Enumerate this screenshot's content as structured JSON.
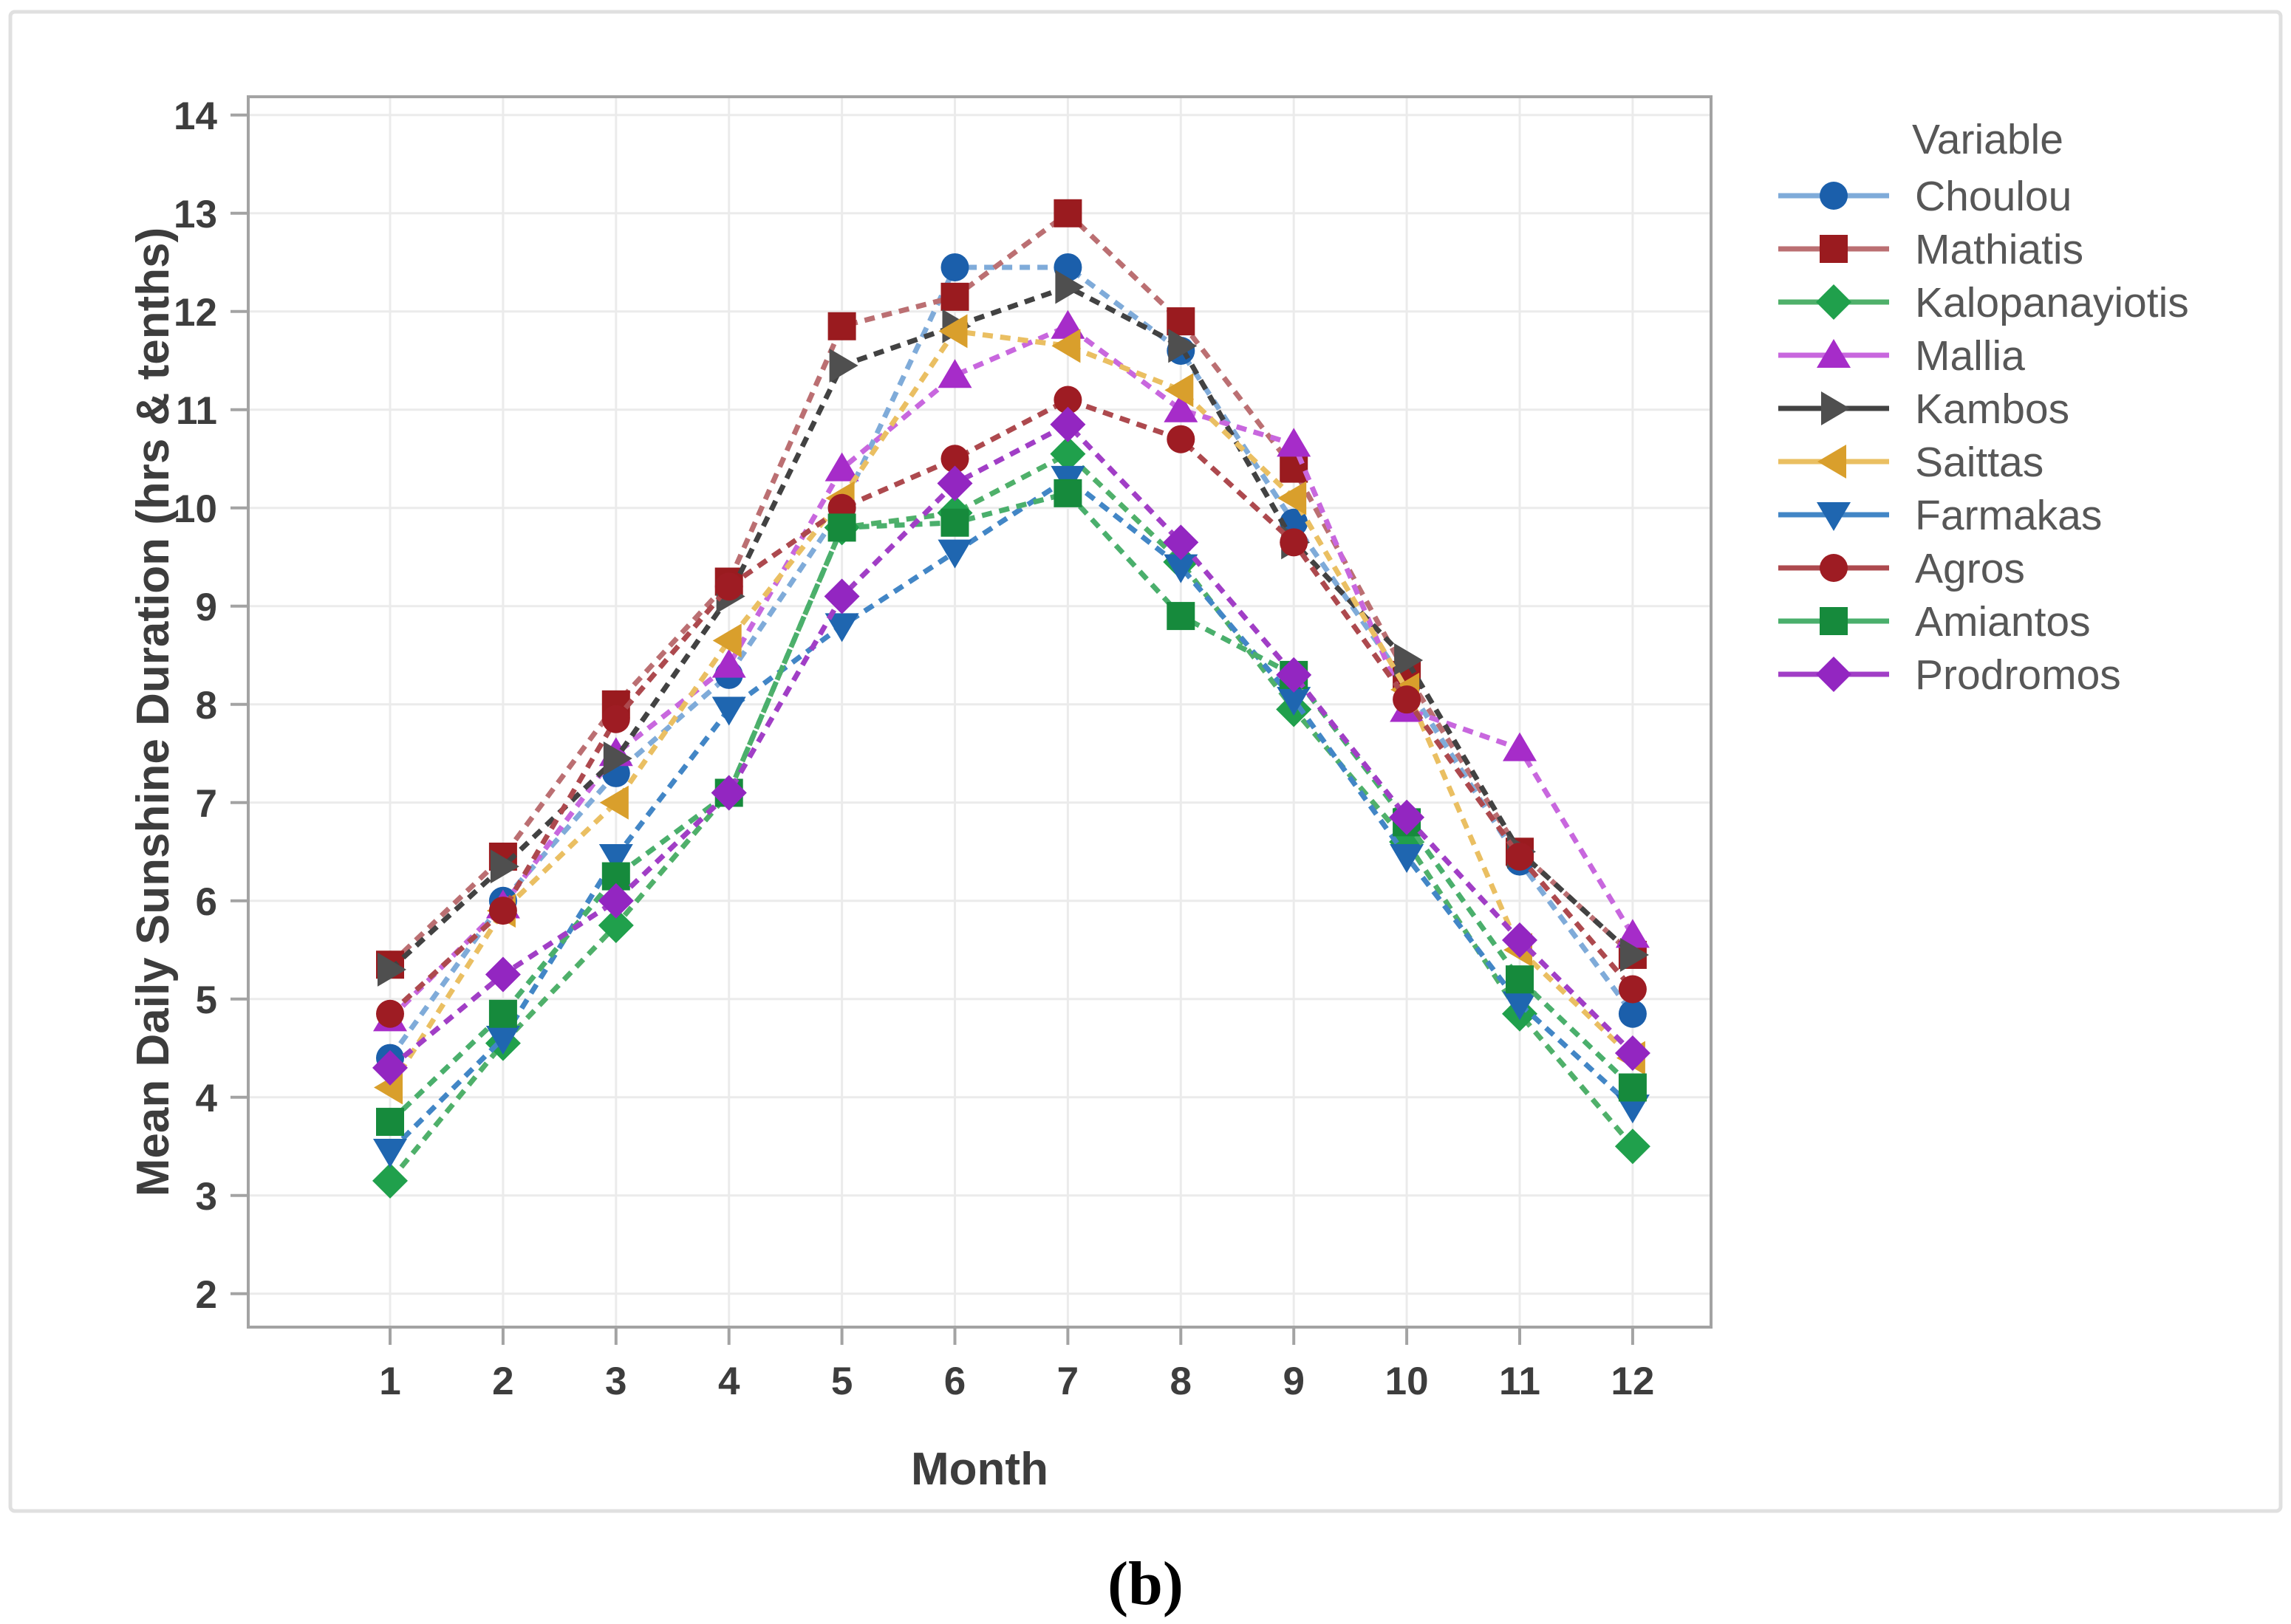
{
  "figure": {
    "caption": "(b)",
    "border_color": "#e0e0e0"
  },
  "chart_data": {
    "type": "line",
    "title": "",
    "xlabel": "Month",
    "ylabel": "Mean Daily Sunshine Duration (hrs & tenths)",
    "x": [
      1,
      2,
      3,
      4,
      5,
      6,
      7,
      8,
      9,
      10,
      11,
      12
    ],
    "xlim": [
      1,
      12
    ],
    "ylim": [
      2,
      14
    ],
    "yticks": [
      2,
      3,
      4,
      5,
      6,
      7,
      8,
      9,
      10,
      11,
      12,
      13,
      14
    ],
    "grid": "both",
    "legend_title": "Variable",
    "legend_position": "right",
    "series": [
      {
        "name": "Choulou",
        "marker": "circle",
        "marker_color": "#1b5fab",
        "line_color": "#7fabd9",
        "values": [
          4.4,
          6.0,
          7.3,
          8.3,
          10.0,
          12.45,
          12.45,
          11.6,
          9.85,
          8.2,
          6.4,
          4.85
        ]
      },
      {
        "name": "Mathiatis",
        "marker": "square",
        "marker_color": "#9a1b1f",
        "line_color": "#bb6f72",
        "values": [
          5.35,
          6.45,
          8.0,
          9.25,
          11.85,
          12.15,
          13.0,
          11.9,
          10.4,
          8.3,
          6.5,
          5.45
        ]
      },
      {
        "name": "Kalopanayiotis",
        "marker": "diamond",
        "marker_color": "#20a04c",
        "line_color": "#4fb06a",
        "values": [
          3.15,
          4.55,
          5.75,
          7.1,
          9.8,
          9.95,
          10.55,
          9.45,
          7.95,
          6.6,
          4.85,
          3.5
        ]
      },
      {
        "name": "Mallia",
        "marker": "triangle-up",
        "marker_color": "#a62cc9",
        "line_color": "#c867de",
        "values": [
          4.8,
          5.95,
          7.5,
          8.4,
          10.4,
          11.35,
          11.85,
          11.0,
          10.65,
          7.95,
          7.55,
          5.65
        ]
      },
      {
        "name": "Kambos",
        "marker": "triangle-right",
        "marker_color": "#4f4f4f",
        "line_color": "#424242",
        "values": [
          5.3,
          6.35,
          7.45,
          9.1,
          11.45,
          11.85,
          12.25,
          11.65,
          9.65,
          8.45,
          6.5,
          5.45
        ]
      },
      {
        "name": "Saittas",
        "marker": "triangle-left",
        "marker_color": "#d99f2c",
        "line_color": "#eabf62",
        "values": [
          4.1,
          5.9,
          7.0,
          8.65,
          10.1,
          11.8,
          11.65,
          11.2,
          10.1,
          8.15,
          5.5,
          4.4
        ]
      },
      {
        "name": "Farmakas",
        "marker": "triangle-down",
        "marker_color": "#1f66b0",
        "line_color": "#4286c6",
        "values": [
          3.45,
          4.6,
          6.45,
          7.95,
          8.8,
          9.55,
          10.3,
          9.4,
          8.05,
          6.45,
          4.95,
          3.9
        ]
      },
      {
        "name": "Agros",
        "marker": "circle",
        "marker_color": "#9e1c23",
        "line_color": "#ad494e",
        "values": [
          4.85,
          5.9,
          7.85,
          9.2,
          10.0,
          10.5,
          11.1,
          10.7,
          9.65,
          8.05,
          6.45,
          5.1
        ]
      },
      {
        "name": "Amiantos",
        "marker": "square",
        "marker_color": "#168a3c",
        "line_color": "#4aaf6c",
        "values": [
          3.75,
          4.85,
          6.25,
          7.1,
          9.8,
          9.85,
          10.15,
          8.9,
          8.3,
          6.8,
          5.2,
          4.1
        ]
      },
      {
        "name": "Prodromos",
        "marker": "diamond",
        "marker_color": "#9326c1",
        "line_color": "#a13ec6",
        "values": [
          4.3,
          5.25,
          6.0,
          7.1,
          9.1,
          10.25,
          10.85,
          9.65,
          8.3,
          6.85,
          5.6,
          4.45
        ]
      }
    ]
  },
  "style": {
    "axis_text_color": "#3d3d3d",
    "legend_text_color": "#575757",
    "frame_color": "#a3a3a3",
    "grid_color": "#ebebeb"
  }
}
